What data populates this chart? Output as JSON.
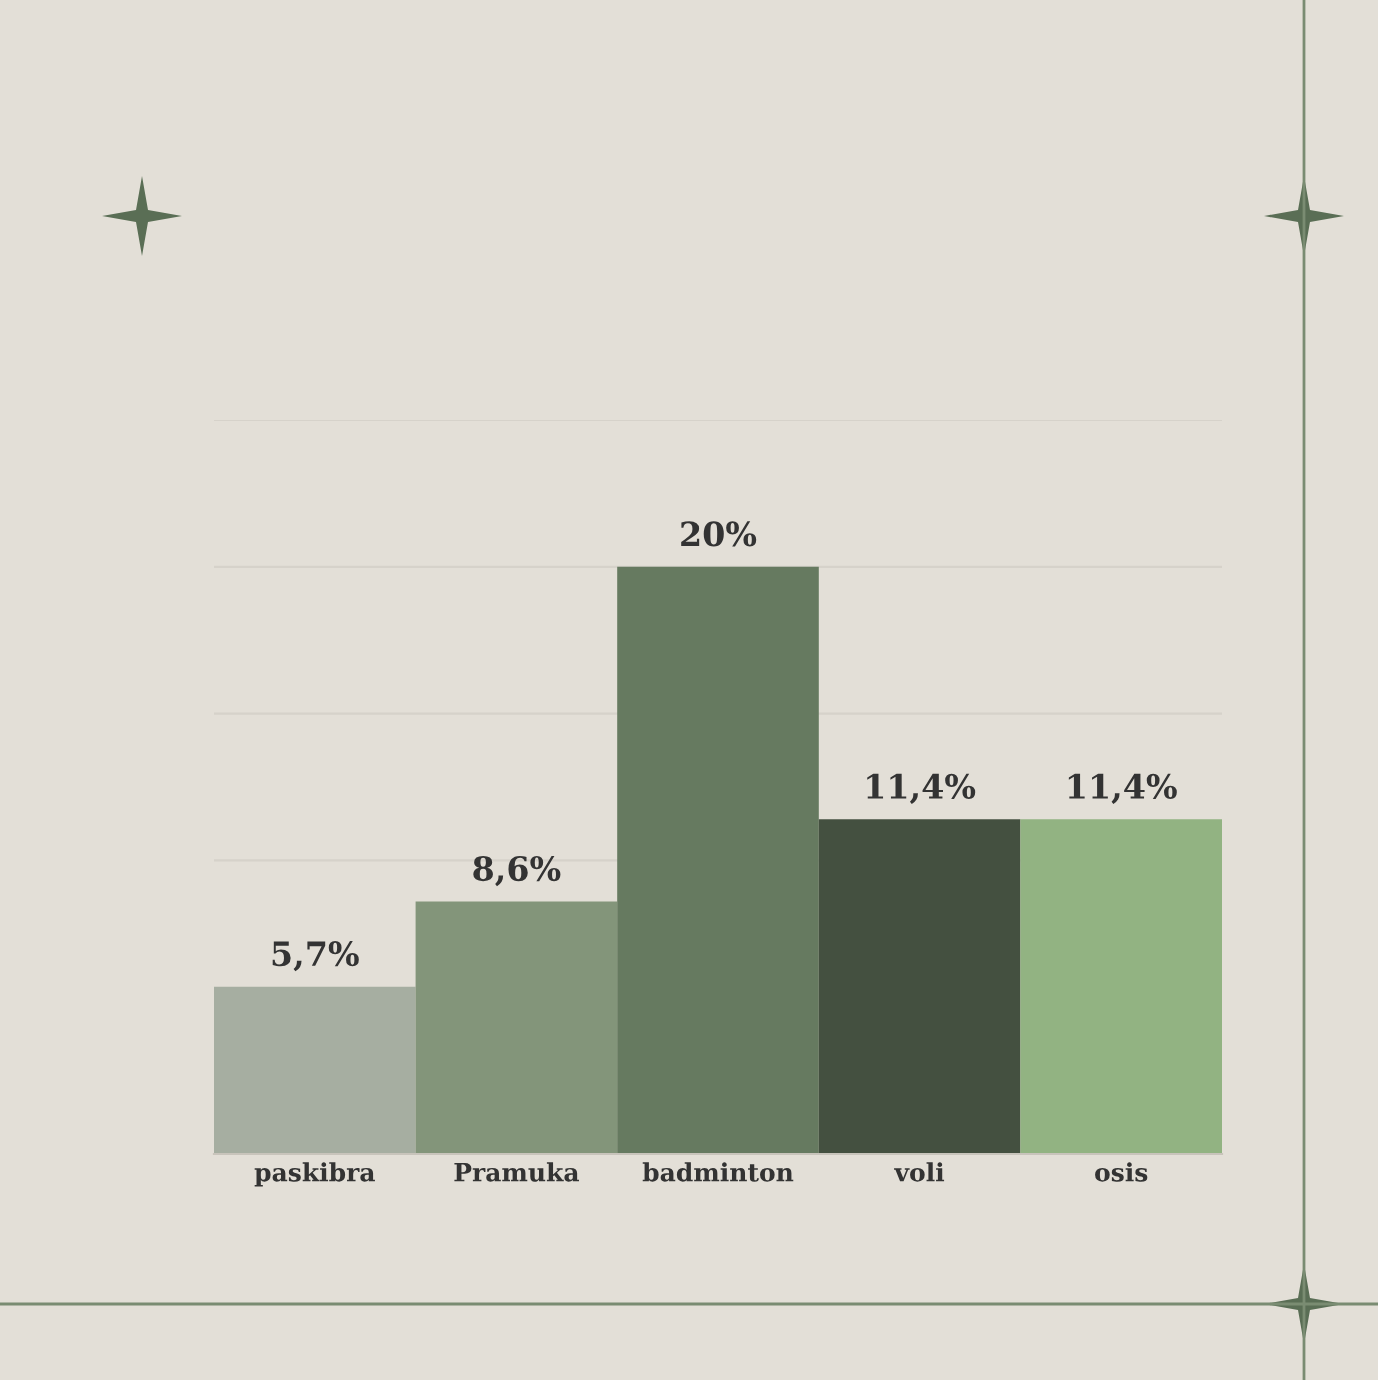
{
  "chart_data": {
    "type": "bar",
    "categories": [
      "paskibra",
      "Pramuka",
      "badminton",
      "voli",
      "osis"
    ],
    "values": [
      5.7,
      8.6,
      20,
      11.4,
      11.4
    ],
    "value_labels": [
      "5,7%",
      "8,6%",
      "20%",
      "11,4%",
      "11,4%"
    ],
    "colors": [
      "#a6aea1",
      "#83957a",
      "#667a60",
      "#445040",
      "#92b382"
    ],
    "ylim": [
      0,
      25
    ],
    "yticks": [
      {
        "value": 10,
        "label": null
      },
      {
        "value": 15,
        "label": null
      },
      {
        "value": 20,
        "label": null
      },
      {
        "value": 25,
        "label": null
      }
    ],
    "tick_labels": "x",
    "grid": "y",
    "legend": false
  }
}
